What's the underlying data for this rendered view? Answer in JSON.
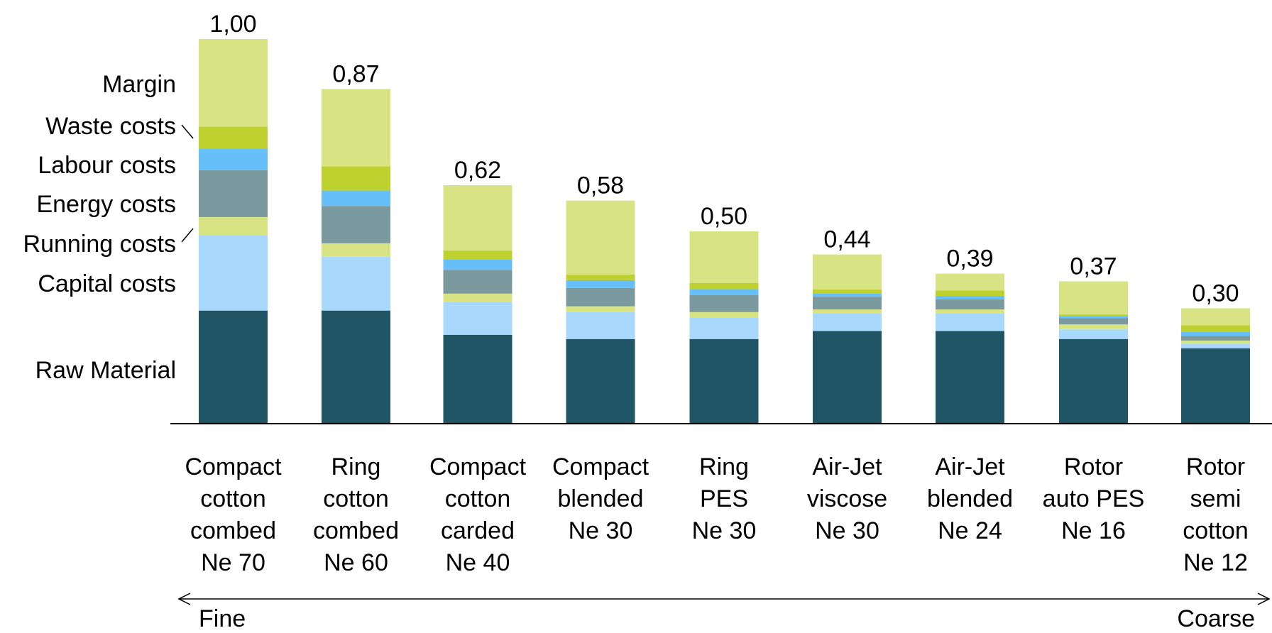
{
  "chart_data": {
    "type": "bar",
    "stacked": true,
    "categories": [
      [
        "Compact",
        "cotton",
        "combed",
        "Ne 70"
      ],
      [
        "Ring",
        "cotton",
        "combed",
        "Ne 60"
      ],
      [
        "Compact",
        "cotton",
        "carded",
        "Ne 40"
      ],
      [
        "Compact",
        "blended",
        "Ne 30"
      ],
      [
        "Ring",
        "PES",
        "Ne 30"
      ],
      [
        "Air-Jet",
        "viscose",
        "Ne 30"
      ],
      [
        "Air-Jet",
        "blended",
        "Ne 24"
      ],
      [
        "Rotor",
        "auto PES",
        "Ne 16"
      ],
      [
        "Rotor",
        "semi",
        "cotton",
        "Ne 12"
      ]
    ],
    "totals": [
      "1,00",
      "0,87",
      "0,62",
      "0,58",
      "0,50",
      "0,44",
      "0,39",
      "0,37",
      "0,30"
    ],
    "series": [
      {
        "name": "Raw Material",
        "color": "#1f5564",
        "values": [
          0.294,
          0.294,
          0.231,
          0.22,
          0.22,
          0.241,
          0.241,
          0.22,
          0.196
        ]
      },
      {
        "name": "Capital costs",
        "color": "#a8d8fb",
        "values": [
          0.195,
          0.14,
          0.085,
          0.07,
          0.055,
          0.045,
          0.045,
          0.025,
          0.012
        ]
      },
      {
        "name": "Running costs",
        "color": "#d8e383",
        "values": [
          0.048,
          0.035,
          0.022,
          0.015,
          0.015,
          0.011,
          0.011,
          0.013,
          0.008
        ]
      },
      {
        "name": "Energy costs",
        "color": "#7b9aa0",
        "values": [
          0.122,
          0.097,
          0.062,
          0.048,
          0.044,
          0.033,
          0.026,
          0.016,
          0.012
        ]
      },
      {
        "name": "Labour costs",
        "color": "#66bff9",
        "values": [
          0.055,
          0.04,
          0.027,
          0.02,
          0.016,
          0.009,
          0.009,
          0.006,
          0.01
        ]
      },
      {
        "name": "Waste costs",
        "color": "#bfd12f",
        "values": [
          0.058,
          0.063,
          0.023,
          0.015,
          0.016,
          0.01,
          0.014,
          0.004,
          0.018
        ]
      },
      {
        "name": "Margin",
        "color": "#d8e383",
        "values": [
          0.228,
          0.201,
          0.17,
          0.192,
          0.134,
          0.091,
          0.044,
          0.086,
          0.044
        ]
      }
    ],
    "ylim": [
      0,
      1.0
    ],
    "grid": false,
    "legend_placement": "left",
    "axis_direction": {
      "left": "Fine",
      "right": "Coarse"
    }
  }
}
